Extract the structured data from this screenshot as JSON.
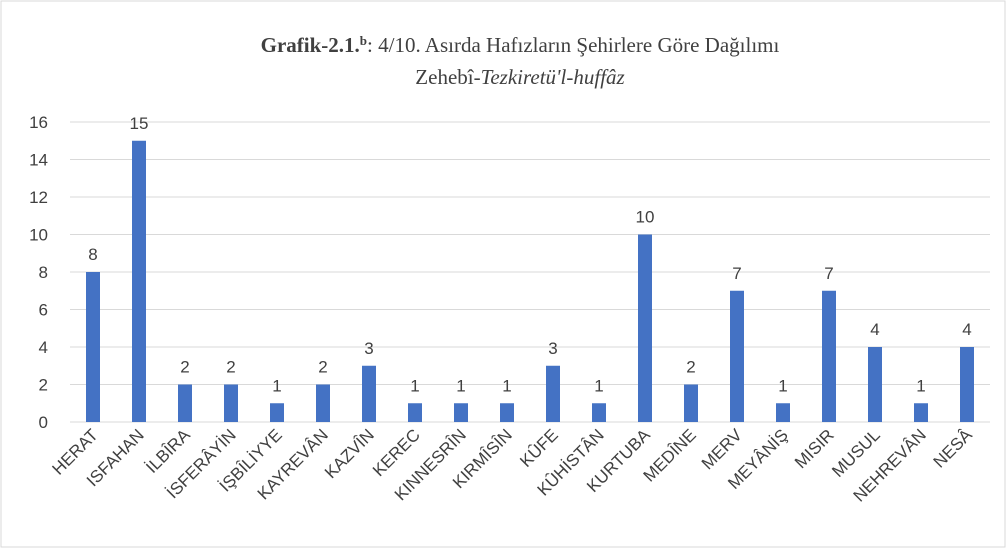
{
  "chart_data": {
    "type": "bar",
    "title": [
      "Grafik-2.1.",
      "b",
      ": 4/10. Asırda Hafızların Şehirlere Göre Dağılımı"
    ],
    "subtitle": [
      "Zehebî-",
      "Tezkiretü'l-huffâz"
    ],
    "categories": [
      "HERAT",
      "ISFAHAN",
      "İLBÎRA",
      "İSFERÂYİN",
      "İŞBÎLİYYE",
      "KAYREVÂN",
      "KAZVÎN",
      "KEREC",
      "KINNESRÎN",
      "KIRMÎSÎN",
      "KÛFE",
      "KÛHİSTÂN",
      "KURTUBA",
      "MEDÎNE",
      "MERV",
      "MEYÂNİŞ",
      "MISIR",
      "MUSUL",
      "NEHREVÂN",
      "NESÂ"
    ],
    "values": [
      8,
      15,
      2,
      2,
      1,
      2,
      3,
      1,
      1,
      1,
      3,
      1,
      10,
      2,
      7,
      1,
      7,
      4,
      1,
      4
    ],
    "color": "#4472c4",
    "ylim": [
      0,
      16
    ],
    "yticks": [
      0,
      2,
      4,
      6,
      8,
      10,
      12,
      14,
      16
    ],
    "grid": true
  }
}
